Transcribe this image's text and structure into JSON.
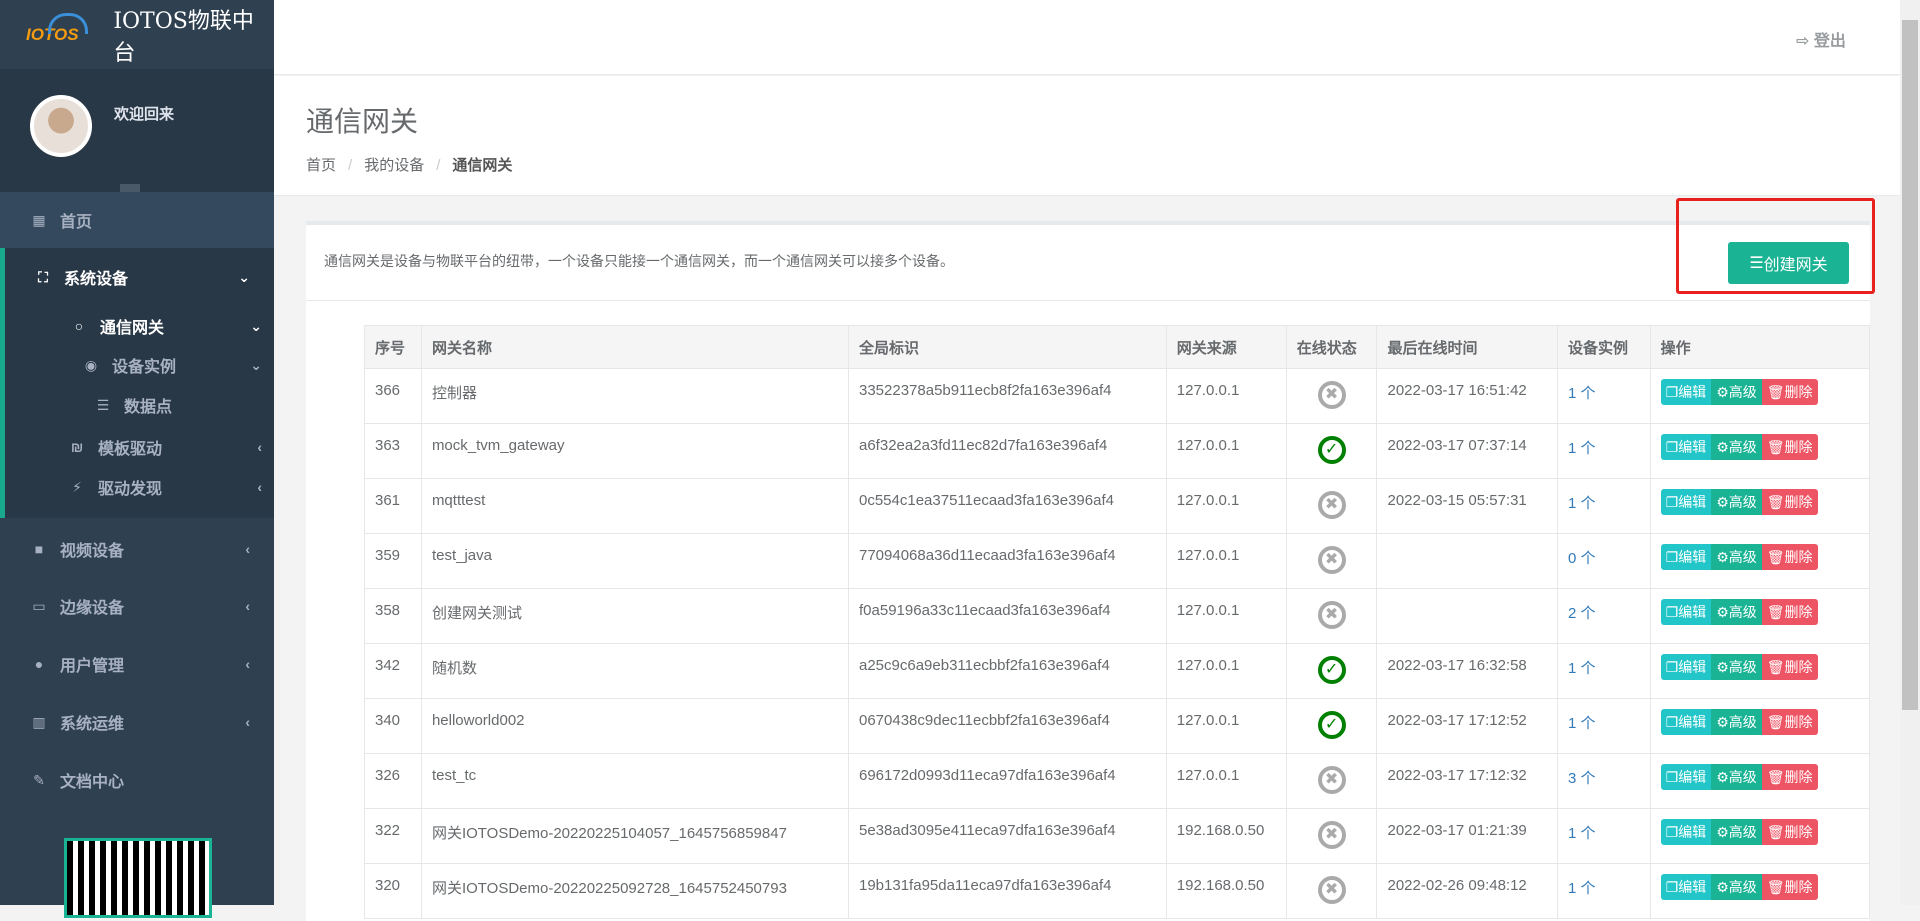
{
  "brand": {
    "logo_text": "IOTOS",
    "title": "IOTOS物联中台"
  },
  "profile": {
    "welcome": "欢迎回来"
  },
  "sidebar": {
    "home": "首页",
    "system_devices": "系统设备",
    "gateway": "通信网关",
    "device_instance": "设备实例",
    "data_point": "数据点",
    "template_driver": "模板驱动",
    "driver_discovery": "驱动发现",
    "video_devices": "视频设备",
    "edge_devices": "边缘设备",
    "user_mgmt": "用户管理",
    "ops": "系统运维",
    "docs": "文档中心"
  },
  "header": {
    "logout": "登出"
  },
  "page": {
    "title": "通信网关",
    "breadcrumb": [
      "首页",
      "我的设备",
      "通信网关"
    ],
    "description": "通信网关是设备与物联平台的纽带，一个设备只能接一个通信网关，而一个通信网关可以接多个设备。",
    "create_button": "创建网关"
  },
  "table": {
    "columns": [
      "序号",
      "网关名称",
      "全局标识",
      "网关来源",
      "在线状态",
      "最后在线时间",
      "设备实例",
      "操作"
    ],
    "actions": {
      "edit": "编辑",
      "advanced": "高级",
      "delete": "删除"
    },
    "rows": [
      {
        "id": "366",
        "name": "控制器",
        "uid": "33522378a5b911ecb8f2fa163e396af4",
        "source": "127.0.0.1",
        "online": false,
        "last": "2022-03-17 16:51:42",
        "instances": "1 个"
      },
      {
        "id": "363",
        "name": "mock_tvm_gateway",
        "uid": "a6f32ea2a3fd11ec82d7fa163e396af4",
        "source": "127.0.0.1",
        "online": true,
        "last": "2022-03-17 07:37:14",
        "instances": "1 个"
      },
      {
        "id": "361",
        "name": "mqtttest",
        "uid": "0c554c1ea37511ecaad3fa163e396af4",
        "source": "127.0.0.1",
        "online": false,
        "last": "2022-03-15 05:57:31",
        "instances": "1 个"
      },
      {
        "id": "359",
        "name": "test_java",
        "uid": "77094068a36d11ecaad3fa163e396af4",
        "source": "127.0.0.1",
        "online": false,
        "last": "",
        "instances": "0 个"
      },
      {
        "id": "358",
        "name": "创建网关测试",
        "uid": "f0a59196a33c11ecaad3fa163e396af4",
        "source": "127.0.0.1",
        "online": false,
        "last": "",
        "instances": "2 个"
      },
      {
        "id": "342",
        "name": "随机数",
        "uid": "a25c9c6a9eb311ecbbf2fa163e396af4",
        "source": "127.0.0.1",
        "online": true,
        "last": "2022-03-17 16:32:58",
        "instances": "1 个"
      },
      {
        "id": "340",
        "name": "helloworld002",
        "uid": "0670438c9dec11ecbbf2fa163e396af4",
        "source": "127.0.0.1",
        "online": true,
        "last": "2022-03-17 17:12:52",
        "instances": "1 个"
      },
      {
        "id": "326",
        "name": "test_tc",
        "uid": "696172d0993d11eca97dfa163e396af4",
        "source": "127.0.0.1",
        "online": false,
        "last": "2022-03-17 17:12:32",
        "instances": "3 个"
      },
      {
        "id": "322",
        "name": "网关IOTOSDemo-20220225104057_1645756859847",
        "uid": "5e38ad3095e411eca97dfa163e396af4",
        "source": "192.168.0.50",
        "online": false,
        "last": "2022-03-17 01:21:39",
        "instances": "1 个"
      },
      {
        "id": "320",
        "name": "网关IOTOSDemo-20220225092728_1645752450793",
        "uid": "19b131fa95da11eca97dfa163e396af4",
        "source": "192.168.0.50",
        "online": false,
        "last": "2022-02-26 09:48:12",
        "instances": "1 个"
      }
    ]
  },
  "colors": {
    "sidebar": "#2f4050",
    "accent": "#1ab394",
    "edit": "#23c6c8",
    "delete": "#ed5565",
    "online": "#008000",
    "offline": "#aaaaaa",
    "highlight": "#e8211f"
  }
}
